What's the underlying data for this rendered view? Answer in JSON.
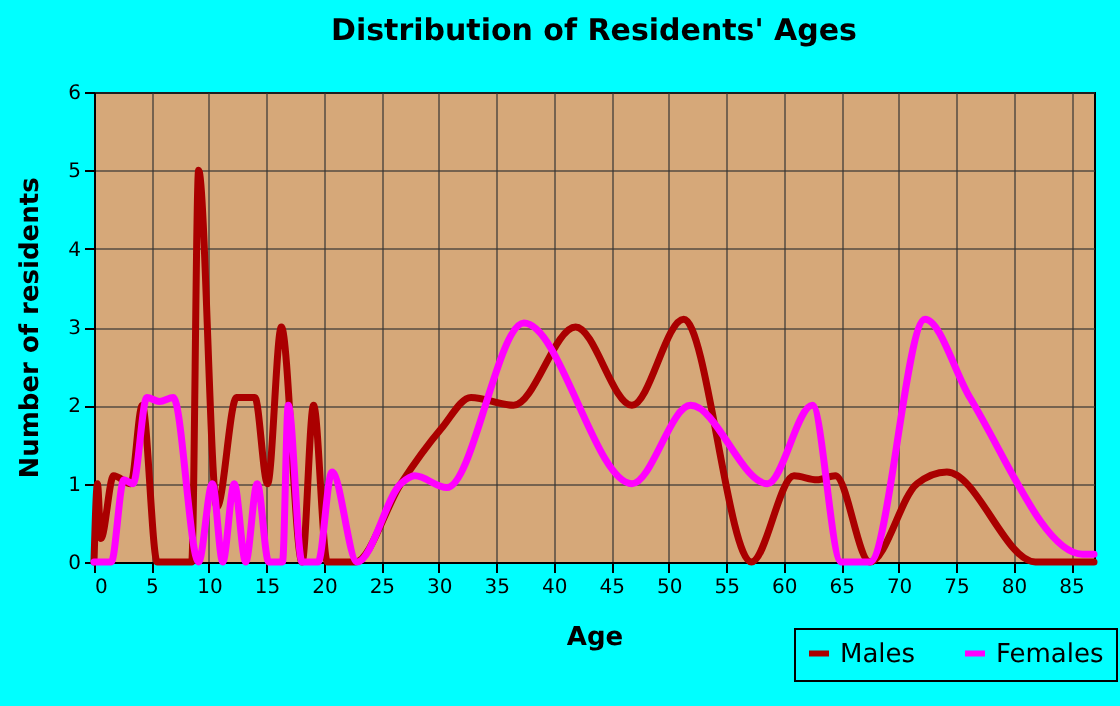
{
  "chart_data": {
    "type": "line",
    "title": "Distribution of Residents' Ages",
    "xlabel": "Age",
    "ylabel": "Number of residents",
    "xlim": [
      0,
      87
    ],
    "xticks": [
      0,
      5,
      10,
      15,
      20,
      25,
      30,
      35,
      40,
      45,
      50,
      55,
      60,
      65,
      70,
      75,
      80,
      85
    ],
    "ylim": [
      0,
      6
    ],
    "yticks": [
      0,
      1,
      2,
      3,
      4,
      5,
      6
    ],
    "grid": true,
    "legend": "bottom right",
    "series": [
      {
        "name": "Males",
        "color": "#aa0000",
        "x": [
          0,
          0.3,
          0.6,
          1.7,
          3.2,
          4.2,
          5.5,
          8.5,
          9.1,
          10.7,
          12.4,
          14,
          15.1,
          16.3,
          18.1,
          19.1,
          20.3,
          22.7,
          26.7,
          30.2,
          32.8,
          36.5,
          41.9,
          46.8,
          51.3,
          57.2,
          60.9,
          62.9,
          64.5,
          67.5,
          71.6,
          74.2,
          81.9,
          87
        ],
        "values": [
          0,
          1,
          0.3,
          1.1,
          1,
          2,
          0,
          0,
          5,
          0.7,
          2.1,
          2.1,
          1,
          3,
          0,
          2,
          0,
          0,
          1,
          1.7,
          2.1,
          2,
          3,
          2,
          3.1,
          0,
          1.1,
          1.05,
          1.1,
          0,
          1,
          1.15,
          0,
          0
        ]
      },
      {
        "name": "Females",
        "color": "#ff00ff",
        "x": [
          0,
          1.5,
          2.6,
          3.4,
          4.6,
          5.7,
          6.9,
          9.1,
          10.3,
          11.2,
          12.2,
          13.2,
          14.2,
          15.2,
          16.4,
          16.9,
          18.1,
          19.5,
          20.7,
          22.9,
          26.7,
          27.9,
          30.7,
          37.4,
          46.8,
          51.9,
          58.6,
          62.5,
          65,
          67.5,
          72.3,
          76.2,
          86,
          87
        ],
        "values": [
          0,
          0,
          1.05,
          1,
          2.1,
          2.05,
          2.1,
          0,
          1,
          0,
          1,
          0,
          1,
          0,
          0,
          2,
          0,
          0,
          1.15,
          0,
          1,
          1.1,
          0.95,
          3.05,
          1,
          2,
          1,
          2,
          0,
          0,
          3.1,
          2.1,
          0.1,
          0.1
        ]
      }
    ]
  }
}
